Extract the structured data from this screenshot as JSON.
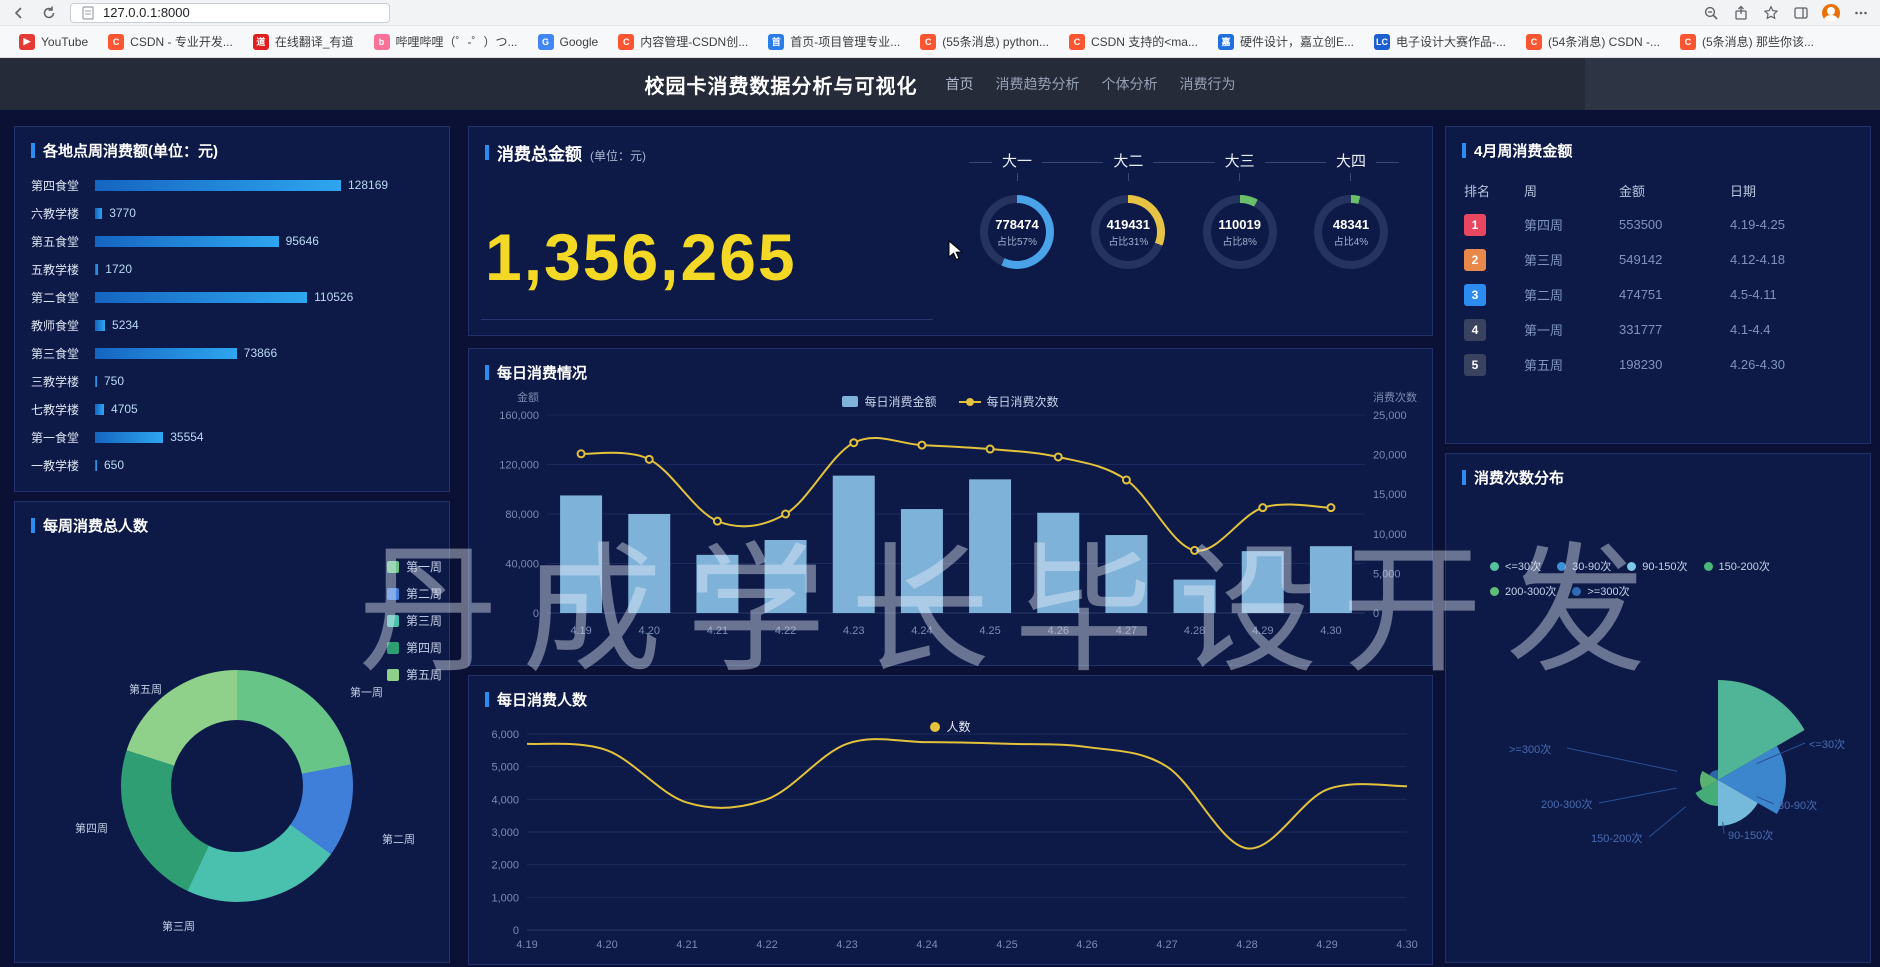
{
  "browser": {
    "url": "127.0.0.1:8000",
    "bookmarks": [
      {
        "label": "YouTube",
        "fav": "▶",
        "color": "#e53935"
      },
      {
        "label": "CSDN - 专业开发...",
        "fav": "C",
        "color": "#fc5531"
      },
      {
        "label": "在线翻译_有道",
        "fav": "道",
        "color": "#e02020"
      },
      {
        "label": "哔哩哔哩（゜-゜）つ...",
        "fav": "b",
        "color": "#fb7299"
      },
      {
        "label": "Google",
        "fav": "G",
        "color": "#4285f4"
      },
      {
        "label": "内容管理-CSDN创...",
        "fav": "C",
        "color": "#fc5531"
      },
      {
        "label": "首页-项目管理专业...",
        "fav": "首",
        "color": "#2b7de9"
      },
      {
        "label": "(55条消息) python...",
        "fav": "C",
        "color": "#fc5531"
      },
      {
        "label": "CSDN 支持的<ma...",
        "fav": "C",
        "color": "#fc5531"
      },
      {
        "label": "硬件设计，嘉立创E...",
        "fav": "嘉",
        "color": "#1f6fe0"
      },
      {
        "label": "电子设计大赛作品-...",
        "fav": "LC",
        "color": "#1b5fd0"
      },
      {
        "label": "(54条消息) CSDN -...",
        "fav": "C",
        "color": "#fc5531"
      },
      {
        "label": "(5条消息) 那些你该...",
        "fav": "C",
        "color": "#fc5531"
      }
    ]
  },
  "header": {
    "title": "校园卡消费数据分析与可视化",
    "nav": [
      "首页",
      "消费趋势分析",
      "个体分析",
      "消费行为"
    ]
  },
  "watermark": {
    "text": "丹成学长毕设开发"
  },
  "chart_data": [
    {
      "id": "location_weekly_spend",
      "type": "bar",
      "orientation": "horizontal",
      "title": "各地点周消费额(单位：元)",
      "categories": [
        "第四食堂",
        "六教学楼",
        "第五食堂",
        "五教学楼",
        "第二食堂",
        "教师食堂",
        "第三食堂",
        "三教学楼",
        "七教学楼",
        "第一食堂",
        "一教学楼"
      ],
      "values": [
        128169,
        3770,
        95646,
        1720,
        110526,
        5234,
        73866,
        750,
        4705,
        35554,
        650
      ],
      "xlim": [
        0,
        128169
      ],
      "bar_color": "#1f8fe8"
    },
    {
      "id": "weekly_total_people",
      "type": "pie",
      "title": "每周消费总人数",
      "legend_position": "right-top",
      "segments": [
        {
          "label": "第一周",
          "percent": 22,
          "color": "#68c588"
        },
        {
          "label": "第二周",
          "percent": 13,
          "color": "#3f7fd9"
        },
        {
          "label": "第三周",
          "percent": 22,
          "color": "#4ac0ae"
        },
        {
          "label": "第四周",
          "percent": 23,
          "color": "#2f9e72"
        },
        {
          "label": "第五周",
          "percent": 20,
          "color": "#8fd08b"
        }
      ],
      "labels": [
        {
          "text": "第五周",
          "x": 114,
          "y": 179
        },
        {
          "text": "第一周",
          "x": 335,
          "y": 182
        },
        {
          "text": "第四周",
          "x": 60,
          "y": 318
        },
        {
          "text": "第二周",
          "x": 367,
          "y": 329
        },
        {
          "text": "第三周",
          "x": 147,
          "y": 416
        }
      ]
    },
    {
      "id": "total_consumption",
      "type": "gauge",
      "title": "消费总金额",
      "unit": "(单位：元)",
      "total": "1,356,265",
      "gauges": [
        {
          "label": "大一",
          "value": "778474",
          "percent": 57,
          "percent_label": "占比57%",
          "color": "#4aa2e8"
        },
        {
          "label": "大二",
          "value": "419431",
          "percent": 31,
          "percent_label": "占比31%",
          "color": "#e6c345"
        },
        {
          "label": "大三",
          "value": "110019",
          "percent": 8,
          "percent_label": "占比8%",
          "color": "#6abf69"
        },
        {
          "label": "大四",
          "value": "48341",
          "percent": 4,
          "percent_label": "占比4%",
          "color": "#6abf69"
        }
      ]
    },
    {
      "id": "daily_consumption",
      "type": "bar+line",
      "title": "每日消费情况",
      "categories": [
        "4.19",
        "4.20",
        "4.21",
        "4.22",
        "4.23",
        "4.24",
        "4.25",
        "4.26",
        "4.27",
        "4.28",
        "4.29",
        "4.30"
      ],
      "series": [
        {
          "name": "每日消费金额",
          "type": "bar",
          "axis": "left",
          "color": "#7fb2d8",
          "values": [
            95000,
            80000,
            47000,
            59000,
            111000,
            84000,
            108000,
            81000,
            63000,
            27000,
            50000,
            54000
          ]
        },
        {
          "name": "每日消费次数",
          "type": "line",
          "axis": "right",
          "color": "#e3c23c",
          "values": [
            20100,
            19400,
            11600,
            12500,
            21500,
            21200,
            20700,
            19700,
            16800,
            7900,
            13300,
            13300
          ]
        }
      ],
      "left_axis": {
        "name": "金额",
        "min": 0,
        "max": 160000,
        "step": 40000
      },
      "right_axis": {
        "name": "消费次数",
        "min": 0,
        "max": 25000,
        "step": 5000
      },
      "grid": true,
      "legend_position": "top-center"
    },
    {
      "id": "daily_people",
      "type": "line",
      "title": "每日消费人数",
      "series_name": "人数",
      "color": "#e3c23c",
      "categories": [
        "4.19",
        "4.20",
        "4.21",
        "4.22",
        "4.23",
        "4.24",
        "4.25",
        "4.26",
        "4.27",
        "4.28",
        "4.29",
        "4.30"
      ],
      "values": [
        5700,
        5500,
        3900,
        4000,
        5700,
        5750,
        5700,
        5600,
        5000,
        2500,
        4300,
        4400
      ],
      "ylim": [
        0,
        6000
      ],
      "step": 1000,
      "grid": true,
      "legend_position": "top-center"
    },
    {
      "id": "april_weekly_amount",
      "type": "table",
      "title": "4月周消费金额",
      "columns": [
        "排名",
        "周",
        "金额",
        "日期"
      ],
      "rows": [
        {
          "rank": "1",
          "week": "第四周",
          "amount": "553500",
          "date": "4.19-4.25",
          "badge_color": "#e8475f"
        },
        {
          "rank": "2",
          "week": "第三周",
          "amount": "549142",
          "date": "4.12-4.18",
          "badge_color": "#e8884a"
        },
        {
          "rank": "3",
          "week": "第二周",
          "amount": "474751",
          "date": "4.5-4.11",
          "badge_color": "#2d8cf0"
        },
        {
          "rank": "4",
          "week": "第一周",
          "amount": "331777",
          "date": "4.1-4.4",
          "badge_color": "#39425f"
        },
        {
          "rank": "5",
          "week": "第五周",
          "amount": "198230",
          "date": "4.26-4.30",
          "badge_color": "#39425f"
        }
      ]
    },
    {
      "id": "consumption_count_distribution",
      "type": "pie",
      "subtype": "rose",
      "title": "消费次数分布",
      "segments": [
        {
          "label": "<=30次",
          "size": 100,
          "color": "#56c29d"
        },
        {
          "label": "30-90次",
          "size": 68,
          "color": "#3f8fd9"
        },
        {
          "label": "90-150次",
          "size": 46,
          "color": "#7ec8e8"
        },
        {
          "label": "150-200次",
          "size": 26,
          "color": "#49b87b"
        },
        {
          "label": "200-300次",
          "size": 18,
          "color": "#5fbf75"
        },
        {
          "label": ">=300次",
          "size": 10,
          "color": "#2f6bb5"
        }
      ],
      "legend_rows": [
        [
          "<=30次",
          "30-90次",
          "90-150次",
          "150-200次"
        ],
        [
          "200-300次",
          ">=300次"
        ]
      ],
      "labels": [
        {
          "text": ">=300次",
          "x": 63,
          "y": 287
        },
        {
          "text": "<=30次",
          "x": 363,
          "y": 282
        },
        {
          "text": "200-300次",
          "x": 95,
          "y": 342
        },
        {
          "text": "30-90次",
          "x": 332,
          "y": 343
        },
        {
          "text": "150-200次",
          "x": 145,
          "y": 376
        },
        {
          "text": "90-150次",
          "x": 282,
          "y": 373
        }
      ]
    }
  ]
}
